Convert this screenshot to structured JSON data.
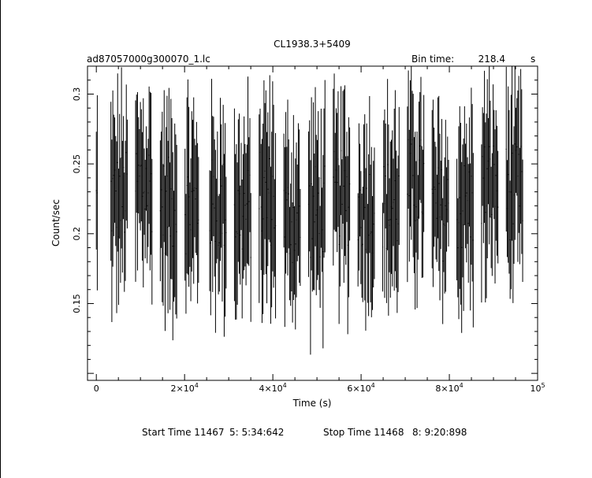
{
  "chart_data": {
    "type": "line",
    "title": "CL1938.3+5409",
    "file_label": "ad87057000g300070_1.lc",
    "bin_time_label": "Bin time:",
    "bin_time_value": "218.4",
    "bin_time_unit": "s",
    "xlabel": "Time (s)",
    "ylabel": "Count/sec",
    "xlim": [
      -2000,
      100000
    ],
    "ylim": [
      0.095,
      0.32
    ],
    "x_ticks": [
      {
        "value": 0,
        "mantissa": "0",
        "exponent": ""
      },
      {
        "value": 20000,
        "mantissa": "2×10",
        "exponent": "4"
      },
      {
        "value": 40000,
        "mantissa": "4×10",
        "exponent": "4"
      },
      {
        "value": 60000,
        "mantissa": "6×10",
        "exponent": "4"
      },
      {
        "value": 80000,
        "mantissa": "8×10",
        "exponent": "4"
      },
      {
        "value": 100000,
        "mantissa": "10",
        "exponent": "5"
      }
    ],
    "y_ticks": [
      {
        "value": 0.15,
        "label": "0.15"
      },
      {
        "value": 0.2,
        "label": "0.2"
      },
      {
        "value": 0.25,
        "label": "0.25"
      },
      {
        "value": 0.3,
        "label": "0.3"
      }
    ],
    "segments": [
      {
        "start": 0,
        "end": 400,
        "base": 0.22
      },
      {
        "start": 3300,
        "end": 7100,
        "base": 0.225
      },
      {
        "start": 8900,
        "end": 12700,
        "base": 0.235
      },
      {
        "start": 14500,
        "end": 18300,
        "base": 0.22
      },
      {
        "start": 20100,
        "end": 23300,
        "base": 0.22
      },
      {
        "start": 25700,
        "end": 29500,
        "base": 0.22
      },
      {
        "start": 31300,
        "end": 35100,
        "base": 0.215
      },
      {
        "start": 36900,
        "end": 40700,
        "base": 0.225
      },
      {
        "start": 42500,
        "end": 46300,
        "base": 0.21
      },
      {
        "start": 48100,
        "end": 51900,
        "base": 0.215
      },
      {
        "start": 53700,
        "end": 57500,
        "base": 0.225
      },
      {
        "start": 59300,
        "end": 63100,
        "base": 0.22
      },
      {
        "start": 64900,
        "end": 68700,
        "base": 0.22
      },
      {
        "start": 70500,
        "end": 74300,
        "base": 0.235
      },
      {
        "start": 76100,
        "end": 79900,
        "base": 0.215
      },
      {
        "start": 81700,
        "end": 85500,
        "base": 0.22
      },
      {
        "start": 87300,
        "end": 91100,
        "base": 0.235
      },
      {
        "start": 92900,
        "end": 96700,
        "base": 0.23
      }
    ],
    "bin_width_s": 218.4,
    "grid": false,
    "legend": "none"
  },
  "footer": {
    "start_label": "Start Time 11467",
    "start_time": "5: 5:34:642",
    "stop_label": "Stop Time 11468",
    "stop_time": "8: 9:20:898"
  }
}
